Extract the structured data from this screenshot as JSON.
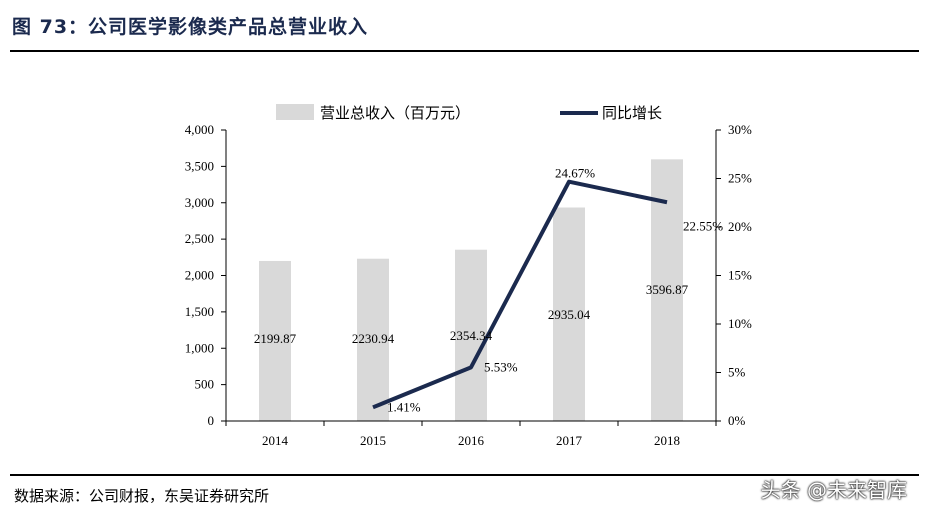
{
  "header": {
    "title": "图 73：公司医学影像类产品总营业收入"
  },
  "footer": {
    "source": "数据来源：公司财报，东吴证券研究所",
    "watermark": "头条 @未来智库"
  },
  "chart_data": {
    "type": "bar+line",
    "categories": [
      "2014",
      "2015",
      "2016",
      "2017",
      "2018"
    ],
    "series": [
      {
        "name": "营业总收入（百万元）",
        "type": "bar",
        "axis": "left",
        "color": "#d9d9d9",
        "values": [
          2199.87,
          2230.94,
          2354.34,
          2935.04,
          3596.87
        ],
        "labels": [
          "2199.87",
          "2230.94",
          "2354.34",
          "2935.04",
          "3596.87"
        ]
      },
      {
        "name": "同比增长",
        "type": "line",
        "axis": "right",
        "color": "#1b2a4e",
        "values": [
          null,
          1.41,
          5.53,
          24.67,
          22.55
        ],
        "labels": [
          "",
          "1.41%",
          "5.53%",
          "24.67%",
          "22.55%"
        ]
      }
    ],
    "y_left": {
      "ylim": [
        0,
        4000
      ],
      "ticks": [
        "0",
        "500",
        "1,000",
        "1,500",
        "2,000",
        "2,500",
        "3,000",
        "3,500",
        "4,000"
      ]
    },
    "y_right": {
      "ylim": [
        0,
        30
      ],
      "ticks": [
        "0%",
        "5%",
        "10%",
        "15%",
        "20%",
        "25%",
        "30%"
      ]
    },
    "legend": "top-center",
    "grid": false
  }
}
